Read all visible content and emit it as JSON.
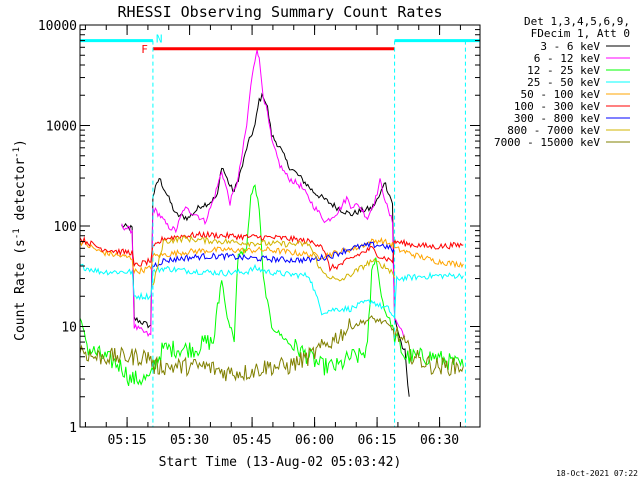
{
  "chart_data": {
    "type": "line",
    "title": "RHESSI Observing Summary Count Rates",
    "xlabel": "Start Time (13-Aug-02 05:03:42)",
    "ylabel_main": "Count Rate (s",
    "ylabel_sup1": "-1",
    "ylabel_mid": " detector",
    "ylabel_sup2": "-1",
    "ylabel_end": ")",
    "yscale": "log",
    "ylim": [
      1,
      10000
    ],
    "xlim_minutes": [
      0,
      96
    ],
    "y_ticks": [
      {
        "v": 1,
        "label": "1"
      },
      {
        "v": 10,
        "label": "10"
      },
      {
        "v": 100,
        "label": "100"
      },
      {
        "v": 1000,
        "label": "1000"
      },
      {
        "v": 10000,
        "label": "10000"
      }
    ],
    "x_ticks": [
      {
        "t": 11.3,
        "label": "05:15"
      },
      {
        "t": 26.3,
        "label": "05:30"
      },
      {
        "t": 41.3,
        "label": "05:45"
      },
      {
        "t": 56.3,
        "label": "06:00"
      },
      {
        "t": 71.3,
        "label": "06:15"
      },
      {
        "t": 86.3,
        "label": "06:30"
      }
    ],
    "legend_header": [
      "Det 1,3,4,5,6,9,",
      "FDecim 1, Att 0"
    ],
    "legend_position": "right",
    "flags": {
      "F": "F",
      "N": "N"
    },
    "flag_F_color": "#ff0000",
    "flag_N_color": "#00ffff",
    "night_intervals": [
      [
        0,
        17.5
      ],
      [
        75.5,
        96
      ]
    ],
    "flare_interval": [
      17.5,
      75.5
    ],
    "night_boundaries": [
      0,
      17.5,
      75.5,
      92.5
    ],
    "night_level": 7000,
    "flare_level": 5800,
    "series": [
      {
        "name": "3 - 6 keV",
        "color": "#000000",
        "points": [
          [
            10,
            100
          ],
          [
            12.5,
            95
          ],
          [
            13,
            12
          ],
          [
            17,
            10
          ],
          [
            17.5,
            200
          ],
          [
            19,
            300
          ],
          [
            21,
            200
          ],
          [
            23,
            130
          ],
          [
            26,
            120
          ],
          [
            29,
            160
          ],
          [
            31,
            170
          ],
          [
            33,
            200
          ],
          [
            34,
            400
          ],
          [
            36,
            250
          ],
          [
            37,
            220
          ],
          [
            39,
            400
          ],
          [
            40,
            600
          ],
          [
            42,
            1000
          ],
          [
            43,
            1800
          ],
          [
            44,
            2000
          ],
          [
            45,
            1500
          ],
          [
            46,
            800
          ],
          [
            48,
            600
          ],
          [
            50,
            400
          ],
          [
            53,
            300
          ],
          [
            56,
            220
          ],
          [
            59,
            180
          ],
          [
            62,
            150
          ],
          [
            65,
            130
          ],
          [
            67,
            140
          ],
          [
            70,
            150
          ],
          [
            72,
            200
          ],
          [
            73,
            280
          ],
          [
            74,
            220
          ],
          [
            75,
            170
          ],
          [
            75.5,
            12
          ],
          [
            78,
            5
          ],
          [
            79,
            2
          ]
        ]
      },
      {
        "name": "6 - 12 keV",
        "color": "#ff00ff",
        "points": [
          [
            10,
            100
          ],
          [
            12.5,
            90
          ],
          [
            13,
            10
          ],
          [
            17,
            8
          ],
          [
            17.5,
            150
          ],
          [
            19,
            130
          ],
          [
            21,
            100
          ],
          [
            23,
            90
          ],
          [
            25,
            150
          ],
          [
            28,
            130
          ],
          [
            30,
            110
          ],
          [
            32,
            180
          ],
          [
            33,
            250
          ],
          [
            34,
            350
          ],
          [
            35,
            250
          ],
          [
            36,
            170
          ],
          [
            38,
            300
          ],
          [
            40,
            1000
          ],
          [
            41,
            2500
          ],
          [
            42,
            4500
          ],
          [
            42.5,
            6000
          ],
          [
            43,
            4500
          ],
          [
            44,
            2000
          ],
          [
            45,
            1300
          ],
          [
            46,
            700
          ],
          [
            48,
            400
          ],
          [
            50,
            300
          ],
          [
            53,
            250
          ],
          [
            56,
            160
          ],
          [
            59,
            110
          ],
          [
            62,
            140
          ],
          [
            64,
            190
          ],
          [
            65,
            160
          ],
          [
            67,
            160
          ],
          [
            69,
            120
          ],
          [
            71,
            190
          ],
          [
            72,
            280
          ],
          [
            73,
            200
          ],
          [
            74,
            140
          ],
          [
            75,
            110
          ],
          [
            75.5,
            12
          ],
          [
            78,
            8
          ]
        ]
      },
      {
        "name": "12 - 25 keV",
        "color": "#00ff00",
        "points": [
          [
            0,
            12
          ],
          [
            2,
            6
          ],
          [
            10,
            4
          ],
          [
            12,
            3
          ],
          [
            13,
            3
          ],
          [
            15,
            3
          ],
          [
            17,
            3
          ],
          [
            17.5,
            4
          ],
          [
            20,
            6
          ],
          [
            25,
            6
          ],
          [
            28,
            6
          ],
          [
            30,
            7
          ],
          [
            32,
            7
          ],
          [
            34,
            30
          ],
          [
            35,
            15
          ],
          [
            36,
            10
          ],
          [
            37,
            8
          ],
          [
            38,
            50
          ],
          [
            40,
            60
          ],
          [
            41,
            200
          ],
          [
            42,
            250
          ],
          [
            43,
            150
          ],
          [
            44,
            30
          ],
          [
            46,
            10
          ],
          [
            50,
            7
          ],
          [
            55,
            5
          ],
          [
            58,
            4
          ],
          [
            62,
            4
          ],
          [
            65,
            5
          ],
          [
            67,
            5
          ],
          [
            69,
            6
          ],
          [
            70,
            35
          ],
          [
            71,
            50
          ],
          [
            72,
            25
          ],
          [
            73,
            15
          ],
          [
            75,
            10
          ],
          [
            75.5,
            8
          ],
          [
            78,
            5
          ],
          [
            85,
            5
          ],
          [
            92,
            4
          ]
        ]
      },
      {
        "name": "25 - 50 keV",
        "color": "#00ffff",
        "points": [
          [
            0,
            40
          ],
          [
            5,
            35
          ],
          [
            10,
            35
          ],
          [
            12.5,
            35
          ],
          [
            13,
            20
          ],
          [
            17,
            20
          ],
          [
            17.5,
            35
          ],
          [
            20,
            38
          ],
          [
            25,
            36
          ],
          [
            30,
            35
          ],
          [
            35,
            34
          ],
          [
            40,
            35
          ],
          [
            42,
            38
          ],
          [
            45,
            35
          ],
          [
            50,
            33
          ],
          [
            55,
            32
          ],
          [
            58,
            14
          ],
          [
            62,
            15
          ],
          [
            65,
            15
          ],
          [
            68,
            17
          ],
          [
            70,
            18
          ],
          [
            72,
            16
          ],
          [
            74,
            15
          ],
          [
            75.5,
            12
          ],
          [
            76,
            30
          ],
          [
            85,
            32
          ],
          [
            92,
            32
          ]
        ]
      },
      {
        "name": "50 - 100 keV",
        "color": "#ffa500",
        "points": [
          [
            0,
            70
          ],
          [
            5,
            55
          ],
          [
            10,
            50
          ],
          [
            12.5,
            48
          ],
          [
            13,
            35
          ],
          [
            17,
            38
          ],
          [
            17.5,
            50
          ],
          [
            25,
            55
          ],
          [
            30,
            57
          ],
          [
            35,
            58
          ],
          [
            40,
            57
          ],
          [
            45,
            58
          ],
          [
            50,
            55
          ],
          [
            55,
            52
          ],
          [
            58,
            50
          ],
          [
            62,
            55
          ],
          [
            66,
            60
          ],
          [
            70,
            70
          ],
          [
            72,
            72
          ],
          [
            75,
            65
          ],
          [
            75.5,
            60
          ],
          [
            80,
            52
          ],
          [
            85,
            45
          ],
          [
            90,
            42
          ],
          [
            92,
            42
          ]
        ]
      },
      {
        "name": "100 - 300 keV",
        "color": "#ff0000",
        "points": [
          [
            0,
            75
          ],
          [
            5,
            60
          ],
          [
            10,
            55
          ],
          [
            12.5,
            55
          ],
          [
            13,
            40
          ],
          [
            17,
            45
          ],
          [
            17.5,
            60
          ],
          [
            20,
            75
          ],
          [
            25,
            80
          ],
          [
            30,
            82
          ],
          [
            35,
            80
          ],
          [
            40,
            78
          ],
          [
            45,
            77
          ],
          [
            50,
            75
          ],
          [
            55,
            70
          ],
          [
            58,
            65
          ],
          [
            60,
            38
          ],
          [
            62,
            40
          ],
          [
            66,
            50
          ],
          [
            70,
            60
          ],
          [
            72,
            50
          ],
          [
            75,
            45
          ],
          [
            75.5,
            70
          ],
          [
            80,
            65
          ],
          [
            85,
            62
          ],
          [
            92,
            65
          ]
        ]
      },
      {
        "name": "300 - 800 keV",
        "color": "#0000ff",
        "points": [
          [
            17.5,
            40
          ],
          [
            20,
            45
          ],
          [
            25,
            48
          ],
          [
            30,
            50
          ],
          [
            35,
            50
          ],
          [
            40,
            48
          ],
          [
            45,
            47
          ],
          [
            50,
            46
          ],
          [
            55,
            46
          ],
          [
            60,
            50
          ],
          [
            65,
            60
          ],
          [
            70,
            65
          ],
          [
            73,
            64
          ],
          [
            75,
            58
          ],
          [
            75.5,
            55
          ]
        ]
      },
      {
        "name": "800 - 7000 keV",
        "color": "#d2b400",
        "points": [
          [
            17.5,
            25
          ],
          [
            20,
            70
          ],
          [
            25,
            75
          ],
          [
            30,
            72
          ],
          [
            35,
            70
          ],
          [
            40,
            68
          ],
          [
            45,
            67
          ],
          [
            50,
            66
          ],
          [
            55,
            66
          ],
          [
            58,
            35
          ],
          [
            62,
            28
          ],
          [
            66,
            35
          ],
          [
            70,
            45
          ],
          [
            72,
            42
          ],
          [
            75,
            35
          ],
          [
            75.5,
            30
          ]
        ]
      },
      {
        "name": "7000 - 15000 keV",
        "color": "#808000",
        "points": [
          [
            0,
            6
          ],
          [
            3,
            5
          ],
          [
            8,
            5
          ],
          [
            12.5,
            5
          ],
          [
            13,
            5
          ],
          [
            17,
            5
          ],
          [
            17.5,
            4
          ],
          [
            20,
            4
          ],
          [
            25,
            4
          ],
          [
            30,
            4
          ],
          [
            35,
            3.5
          ],
          [
            40,
            3.5
          ],
          [
            45,
            4
          ],
          [
            50,
            4
          ],
          [
            55,
            5
          ],
          [
            60,
            7
          ],
          [
            65,
            10
          ],
          [
            70,
            12
          ],
          [
            73,
            11
          ],
          [
            75.5,
            9
          ],
          [
            80,
            5
          ],
          [
            85,
            4
          ],
          [
            92,
            4
          ]
        ]
      }
    ],
    "stamp": "18-Oct-2021 07:22"
  }
}
